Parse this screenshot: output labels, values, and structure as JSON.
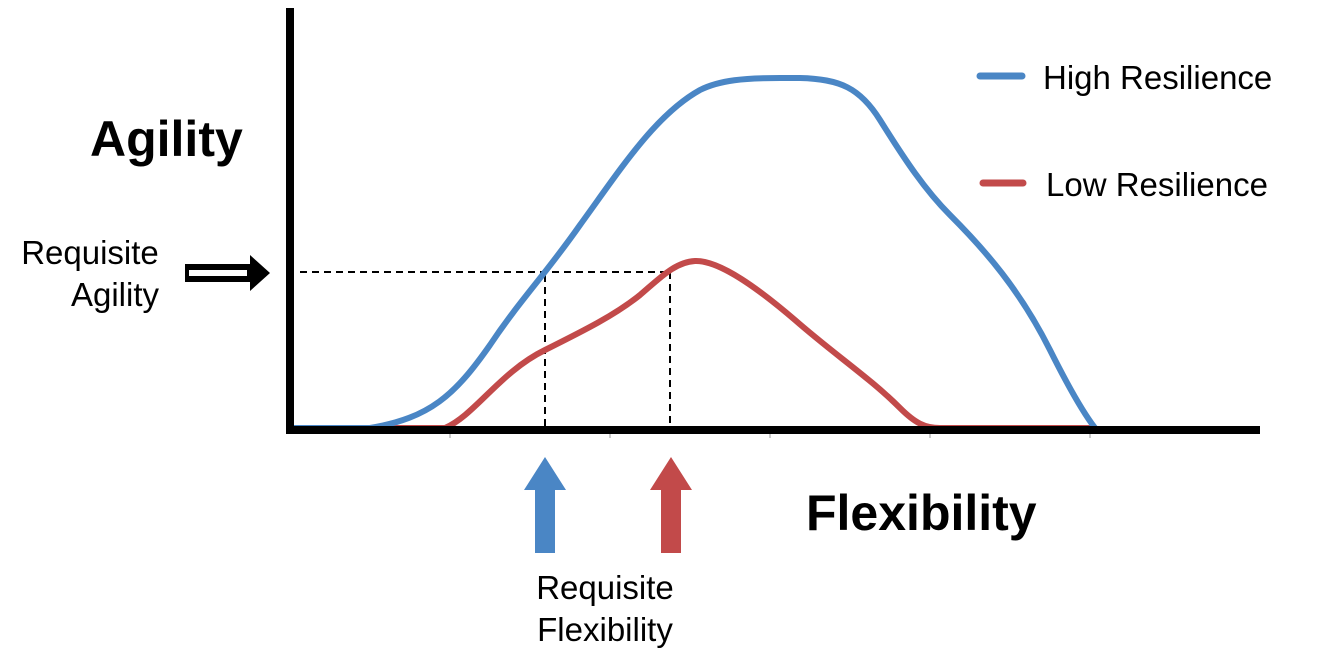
{
  "diagram": {
    "y_axis_title": "Agility",
    "x_axis_title": "Flexibility",
    "requisite_agility": [
      "Requisite",
      "Agility"
    ],
    "requisite_flexibility": [
      "Requisite",
      "Flexibility"
    ],
    "legend": [
      {
        "label": "High Resilience",
        "color": "#4a86c5"
      },
      {
        "label": "Low Resilience",
        "color": "#c24a4a"
      }
    ]
  },
  "colors": {
    "axis": "#000000",
    "high": "#4a86c5",
    "low": "#c24a4a",
    "dashed": "#000000"
  }
}
